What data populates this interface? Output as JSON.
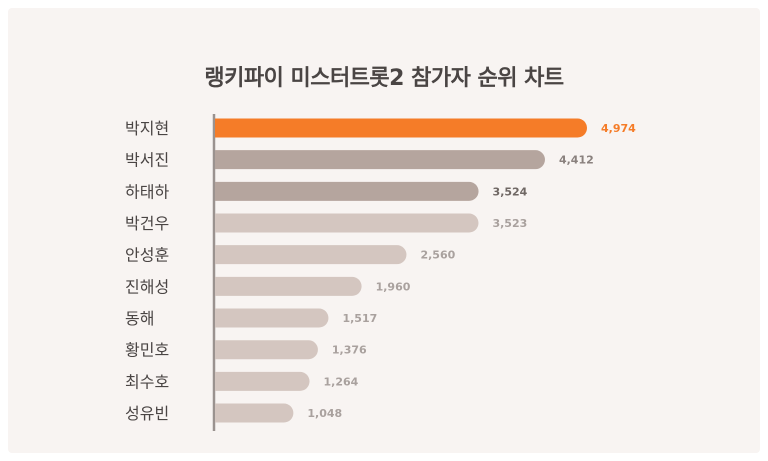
{
  "chart_data": {
    "type": "bar",
    "orientation": "horizontal",
    "title": "랭키파이 미스터트롯2 참가자 순위 차트",
    "categories": [
      "박지현",
      "박서진",
      "하태하",
      "박건우",
      "안성훈",
      "진해성",
      "동해",
      "황민호",
      "최수호",
      "성유빈"
    ],
    "values": [
      4974,
      4412,
      3524,
      3523,
      2560,
      1960,
      1517,
      1376,
      1264,
      1048
    ],
    "value_labels": [
      "4,974",
      "4,412",
      "3,524",
      "3,523",
      "2,560",
      "1,960",
      "1,517",
      "1,376",
      "1,264",
      "1,048"
    ],
    "bar_colors": [
      "#f57c28",
      "#b5a59e",
      "#b5a59e",
      "#d4c6c0",
      "#d4c6c0",
      "#d4c6c0",
      "#d4c6c0",
      "#d4c6c0",
      "#d4c6c0",
      "#d4c6c0"
    ],
    "label_colors": [
      "#f57c28",
      "#8a817e",
      "#6f6764",
      "#a9a19e",
      "#a9a19e",
      "#a9a19e",
      "#a9a19e",
      "#a9a19e",
      "#a9a19e",
      "#a9a19e"
    ],
    "xlim": [
      0,
      5000
    ],
    "grid": false,
    "legend": "none"
  }
}
